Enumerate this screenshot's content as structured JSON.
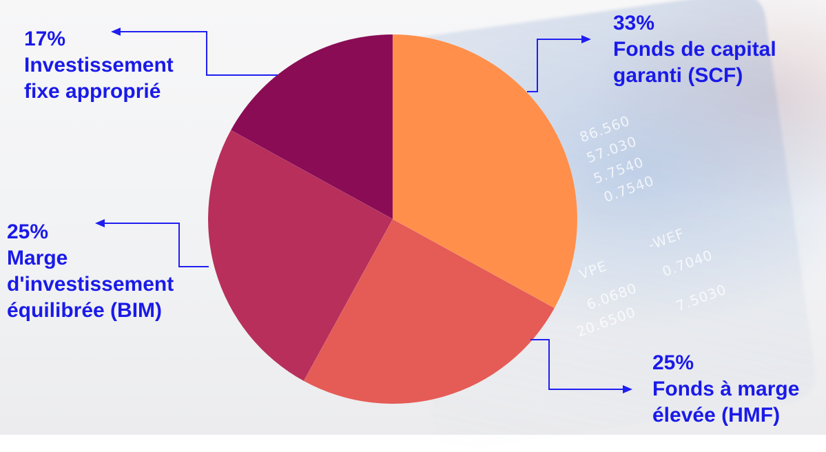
{
  "chart_data": {
    "type": "pie",
    "title": "",
    "start_angle_deg": 0,
    "direction": "clockwise",
    "slices": [
      {
        "label": "Fonds de capital garanti (SCF)",
        "percent_label": "33%",
        "value": 33,
        "color": "#ff8f4a"
      },
      {
        "label": "Fonds à marge élevée (HMF)",
        "percent_label": "25%",
        "value": 25,
        "color": "#e55b56"
      },
      {
        "label": "Marge d'investissement équilibrée (BIM)",
        "percent_label": "25%",
        "value": 25,
        "color": "#b72f5a"
      },
      {
        "label": "Investissement fixe approprié",
        "percent_label": "17%",
        "value": 17,
        "color": "#8a0c55"
      }
    ],
    "label_lines": {
      "scf": [
        "Fonds de capital",
        "garanti (SCF)"
      ],
      "hmf": [
        "Fonds à marge",
        "élevée (HMF)"
      ],
      "bim": [
        "Marge",
        "d'investissement",
        "équilibrée (BIM)"
      ],
      "fixed": [
        "Investissement",
        "fixe approprié"
      ]
    }
  },
  "colors": {
    "callout": "#1f1ef0",
    "label_text": "#1a1ae8"
  },
  "background": {
    "ticker_values": [
      "86.560",
      "57.030",
      "5.7540",
      "0.7540",
      "-WEF",
      "0.7040",
      "VPE",
      "6.0680",
      "20.6500",
      "7.5030"
    ]
  }
}
